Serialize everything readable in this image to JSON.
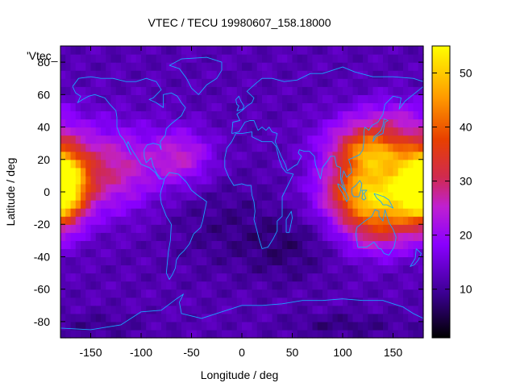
{
  "chart_data": {
    "type": "heatmap",
    "title": "VTEC / TECU 19980607_158.18000",
    "xlabel": "Longitude / deg",
    "ylabel": "Latitude / deg",
    "legend_entry": "'Vtec_",
    "xlim": [
      -180,
      180
    ],
    "ylim": [
      -90,
      90
    ],
    "x_ticks": [
      -150,
      -100,
      -50,
      0,
      50,
      100,
      150
    ],
    "y_ticks": [
      -80,
      -60,
      -40,
      -20,
      0,
      20,
      40,
      60,
      80
    ],
    "colorbar": {
      "range": [
        1,
        55
      ],
      "ticks": [
        10,
        20,
        30,
        40,
        50
      ],
      "palette": "black-blue-magenta-red-orange-yellow"
    },
    "grid_step_deg": 5,
    "features": [
      {
        "lon": 125,
        "lat": 0,
        "lon_sigma": 30,
        "lat_sigma": 13,
        "value": 35
      },
      {
        "lon": 130,
        "lat": 24,
        "lon_sigma": 22,
        "lat_sigma": 9,
        "value": 20
      },
      {
        "lon": 120,
        "lat": 30,
        "lon_sigma": 32,
        "lat_sigma": 12,
        "value": 12
      },
      {
        "lon": 135,
        "lat": -22,
        "lon_sigma": 25,
        "lat_sigma": 12,
        "value": 16
      },
      {
        "lon": 175,
        "lat": 3,
        "lon_sigma": 20,
        "lat_sigma": 16,
        "value": 24
      },
      {
        "lon": -178,
        "lat": 5,
        "lon_sigma": 16,
        "lat_sigma": 16,
        "value": 26
      },
      {
        "lon": -135,
        "lat": 14,
        "lon_sigma": 35,
        "lat_sigma": 18,
        "value": 16
      },
      {
        "lon": -60,
        "lat": 22,
        "lon_sigma": 22,
        "lat_sigma": 12,
        "value": 12
      },
      {
        "lon": 150,
        "lat": 45,
        "lon_sigma": 30,
        "lat_sigma": 10,
        "value": 8
      },
      {
        "lon": 45,
        "lat": -35,
        "lon_sigma": 30,
        "lat_sigma": 15,
        "value": -4
      },
      {
        "lon": -20,
        "lat": -20,
        "lon_sigma": 40,
        "lat_sigma": 20,
        "value": -3
      },
      {
        "lon": 100,
        "lat": -82,
        "lon_sigma": 40,
        "lat_sigma": 5,
        "value": -4
      },
      {
        "lon": -140,
        "lat": -82,
        "lon_sigma": 30,
        "lat_sigma": 5,
        "value": -3
      }
    ],
    "base_value": 12
  }
}
